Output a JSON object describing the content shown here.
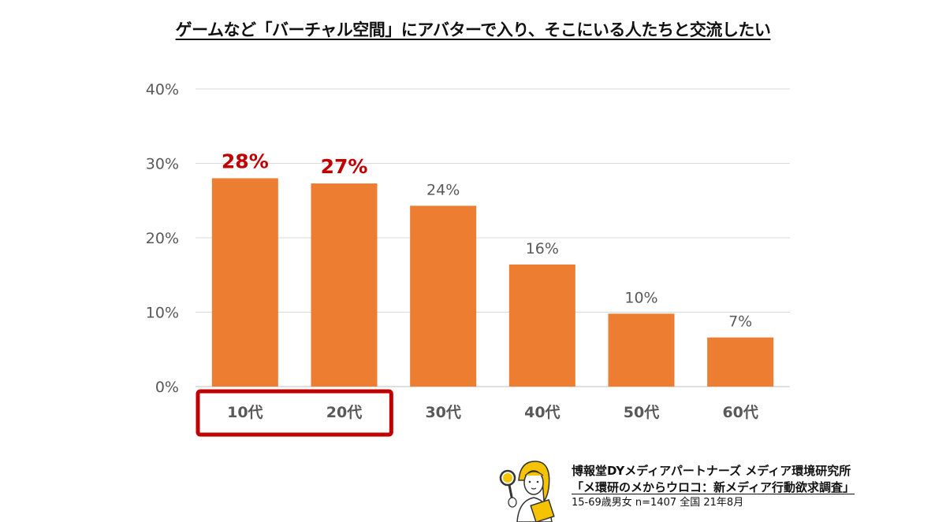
{
  "title": "ゲームなど「バーチャル空間」にアバターで入り、そこにいる人たちと交流したい",
  "chart_data": {
    "type": "bar",
    "categories": [
      "10代",
      "20代",
      "30代",
      "40代",
      "50代",
      "60代"
    ],
    "values": [
      28,
      27.3,
      24.3,
      16.4,
      9.8,
      6.6
    ],
    "value_labels": [
      "28%",
      "27%",
      "24%",
      "16%",
      "10%",
      "7%"
    ],
    "highlighted_categories": [
      "10代",
      "20代"
    ],
    "ylim": [
      0,
      40
    ],
    "yticks": [
      0,
      10,
      20,
      30,
      40
    ],
    "ytick_labels": [
      "0%",
      "10%",
      "20%",
      "30%",
      "40%"
    ],
    "grid": true,
    "colors": {
      "bar": "#ED7D31",
      "highlight_label": "#C00000",
      "highlight_box": "#C00000",
      "label": "#595959",
      "grid": "#D9D9D9"
    }
  },
  "credit": {
    "organization": "博報堂DYメディアパートナーズ メディア環境研究所",
    "study": "「メ環研のメからウロコ：新メディア行動欲求調査」",
    "sample": "15-69歳男女 n=1407 全国 21年8月"
  }
}
